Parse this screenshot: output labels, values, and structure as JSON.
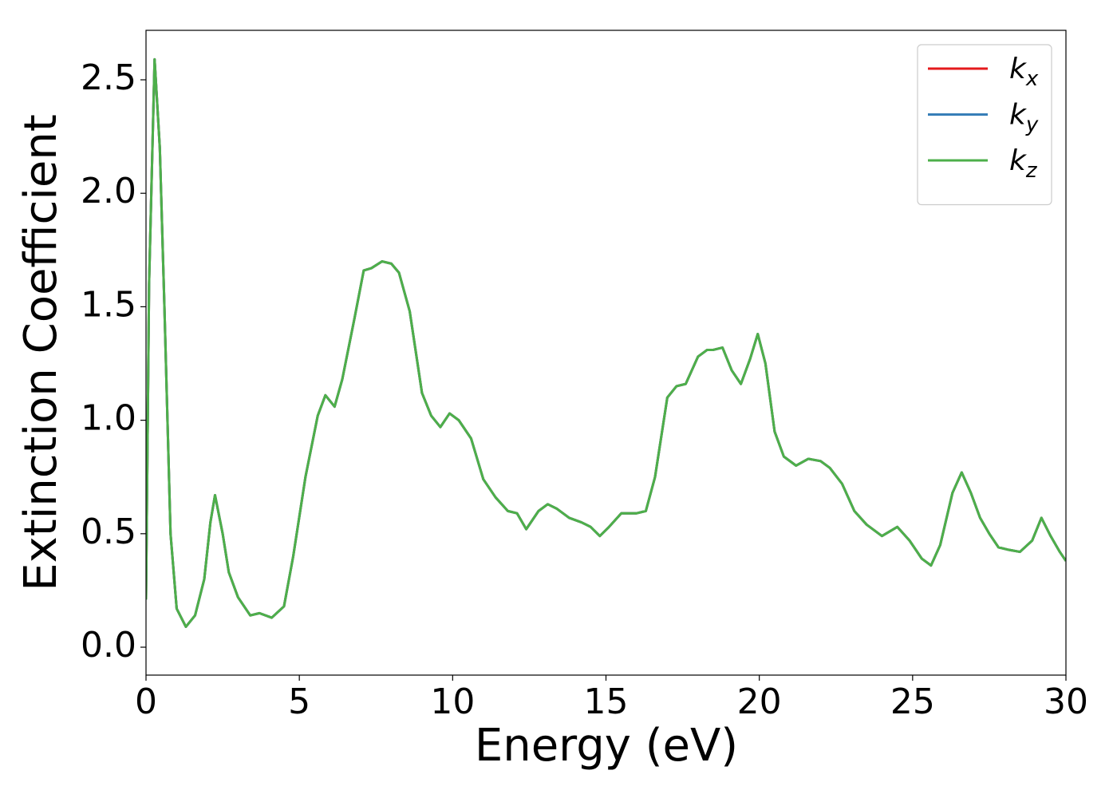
{
  "chart_data": {
    "type": "line",
    "xlabel": "Energy (eV)",
    "ylabel": "Extinction Coefficient",
    "xlim": [
      0,
      30
    ],
    "ylim": [
      -0.123,
      2.718
    ],
    "xticks": [
      0,
      5,
      10,
      15,
      20,
      25,
      30
    ],
    "yticks": [
      {
        "value": 0,
        "label": "0.0"
      },
      0.5,
      {
        "value": 1,
        "label": "1.0"
      },
      1.5,
      {
        "value": 2,
        "label": "2.0"
      },
      2.5
    ],
    "legend": "upper right",
    "x": [
      0,
      0.1,
      0.28,
      0.45,
      0.6,
      0.8,
      1.0,
      1.3,
      1.6,
      1.9,
      2.1,
      2.25,
      2.5,
      2.7,
      3.0,
      3.4,
      3.7,
      4.1,
      4.5,
      4.8,
      5.2,
      5.6,
      5.85,
      6.15,
      6.4,
      6.8,
      7.1,
      7.35,
      7.7,
      8.0,
      8.25,
      8.6,
      9.0,
      9.3,
      9.6,
      9.9,
      10.2,
      10.6,
      11.0,
      11.4,
      11.8,
      12.1,
      12.4,
      12.8,
      13.1,
      13.4,
      13.8,
      14.2,
      14.5,
      14.8,
      15.1,
      15.5,
      16.0,
      16.3,
      16.6,
      17.0,
      17.3,
      17.6,
      18.0,
      18.3,
      18.5,
      18.8,
      19.1,
      19.4,
      19.7,
      19.95,
      20.2,
      20.5,
      20.8,
      21.2,
      21.6,
      22.0,
      22.3,
      22.7,
      23.1,
      23.5,
      24.0,
      24.5,
      24.9,
      25.3,
      25.6,
      25.9,
      26.3,
      26.6,
      26.9,
      27.2,
      27.5,
      27.8,
      28.1,
      28.5,
      28.9,
      29.2,
      29.5,
      29.8,
      30.0
    ],
    "series": [
      {
        "name": "kx",
        "color": "#e41a1c",
        "values": [
          0.21,
          1.6,
          2.59,
          2.2,
          1.5,
          0.5,
          0.17,
          0.09,
          0.14,
          0.3,
          0.55,
          0.67,
          0.5,
          0.33,
          0.22,
          0.14,
          0.15,
          0.13,
          0.18,
          0.4,
          0.75,
          1.02,
          1.11,
          1.06,
          1.18,
          1.45,
          1.66,
          1.67,
          1.7,
          1.69,
          1.65,
          1.48,
          1.12,
          1.02,
          0.97,
          1.03,
          1.0,
          0.92,
          0.74,
          0.66,
          0.6,
          0.59,
          0.52,
          0.6,
          0.63,
          0.61,
          0.57,
          0.55,
          0.53,
          0.49,
          0.53,
          0.59,
          0.59,
          0.6,
          0.75,
          1.1,
          1.15,
          1.16,
          1.28,
          1.31,
          1.31,
          1.32,
          1.22,
          1.16,
          1.27,
          1.38,
          1.25,
          0.95,
          0.84,
          0.8,
          0.83,
          0.82,
          0.79,
          0.72,
          0.6,
          0.54,
          0.49,
          0.53,
          0.47,
          0.39,
          0.36,
          0.45,
          0.68,
          0.77,
          0.68,
          0.57,
          0.5,
          0.44,
          0.43,
          0.42,
          0.47,
          0.57,
          0.49,
          0.42,
          0.38
        ]
      },
      {
        "name": "ky",
        "color": "#377eb8",
        "values": [
          0.21,
          1.6,
          2.59,
          2.2,
          1.5,
          0.5,
          0.17,
          0.09,
          0.14,
          0.3,
          0.55,
          0.67,
          0.5,
          0.33,
          0.22,
          0.14,
          0.15,
          0.13,
          0.18,
          0.4,
          0.75,
          1.02,
          1.11,
          1.06,
          1.18,
          1.45,
          1.66,
          1.67,
          1.7,
          1.69,
          1.65,
          1.48,
          1.12,
          1.02,
          0.97,
          1.03,
          1.0,
          0.92,
          0.74,
          0.66,
          0.6,
          0.59,
          0.52,
          0.6,
          0.63,
          0.61,
          0.57,
          0.55,
          0.53,
          0.49,
          0.53,
          0.59,
          0.59,
          0.6,
          0.75,
          1.1,
          1.15,
          1.16,
          1.28,
          1.31,
          1.31,
          1.32,
          1.22,
          1.16,
          1.27,
          1.38,
          1.25,
          0.95,
          0.84,
          0.8,
          0.83,
          0.82,
          0.79,
          0.72,
          0.6,
          0.54,
          0.49,
          0.53,
          0.47,
          0.39,
          0.36,
          0.45,
          0.68,
          0.77,
          0.68,
          0.57,
          0.5,
          0.44,
          0.43,
          0.42,
          0.47,
          0.57,
          0.49,
          0.42,
          0.38
        ]
      },
      {
        "name": "kz",
        "color": "#4daf4a",
        "values": [
          0.21,
          1.6,
          2.59,
          2.2,
          1.5,
          0.5,
          0.17,
          0.09,
          0.14,
          0.3,
          0.55,
          0.67,
          0.5,
          0.33,
          0.22,
          0.14,
          0.15,
          0.13,
          0.18,
          0.4,
          0.75,
          1.02,
          1.11,
          1.06,
          1.18,
          1.45,
          1.66,
          1.67,
          1.7,
          1.69,
          1.65,
          1.48,
          1.12,
          1.02,
          0.97,
          1.03,
          1.0,
          0.92,
          0.74,
          0.66,
          0.6,
          0.59,
          0.52,
          0.6,
          0.63,
          0.61,
          0.57,
          0.55,
          0.53,
          0.49,
          0.53,
          0.59,
          0.59,
          0.6,
          0.75,
          1.1,
          1.15,
          1.16,
          1.28,
          1.31,
          1.31,
          1.32,
          1.22,
          1.16,
          1.27,
          1.38,
          1.25,
          0.95,
          0.84,
          0.8,
          0.83,
          0.82,
          0.79,
          0.72,
          0.6,
          0.54,
          0.49,
          0.53,
          0.47,
          0.39,
          0.36,
          0.45,
          0.68,
          0.77,
          0.68,
          0.57,
          0.5,
          0.44,
          0.43,
          0.42,
          0.47,
          0.57,
          0.49,
          0.42,
          0.38
        ]
      }
    ]
  }
}
